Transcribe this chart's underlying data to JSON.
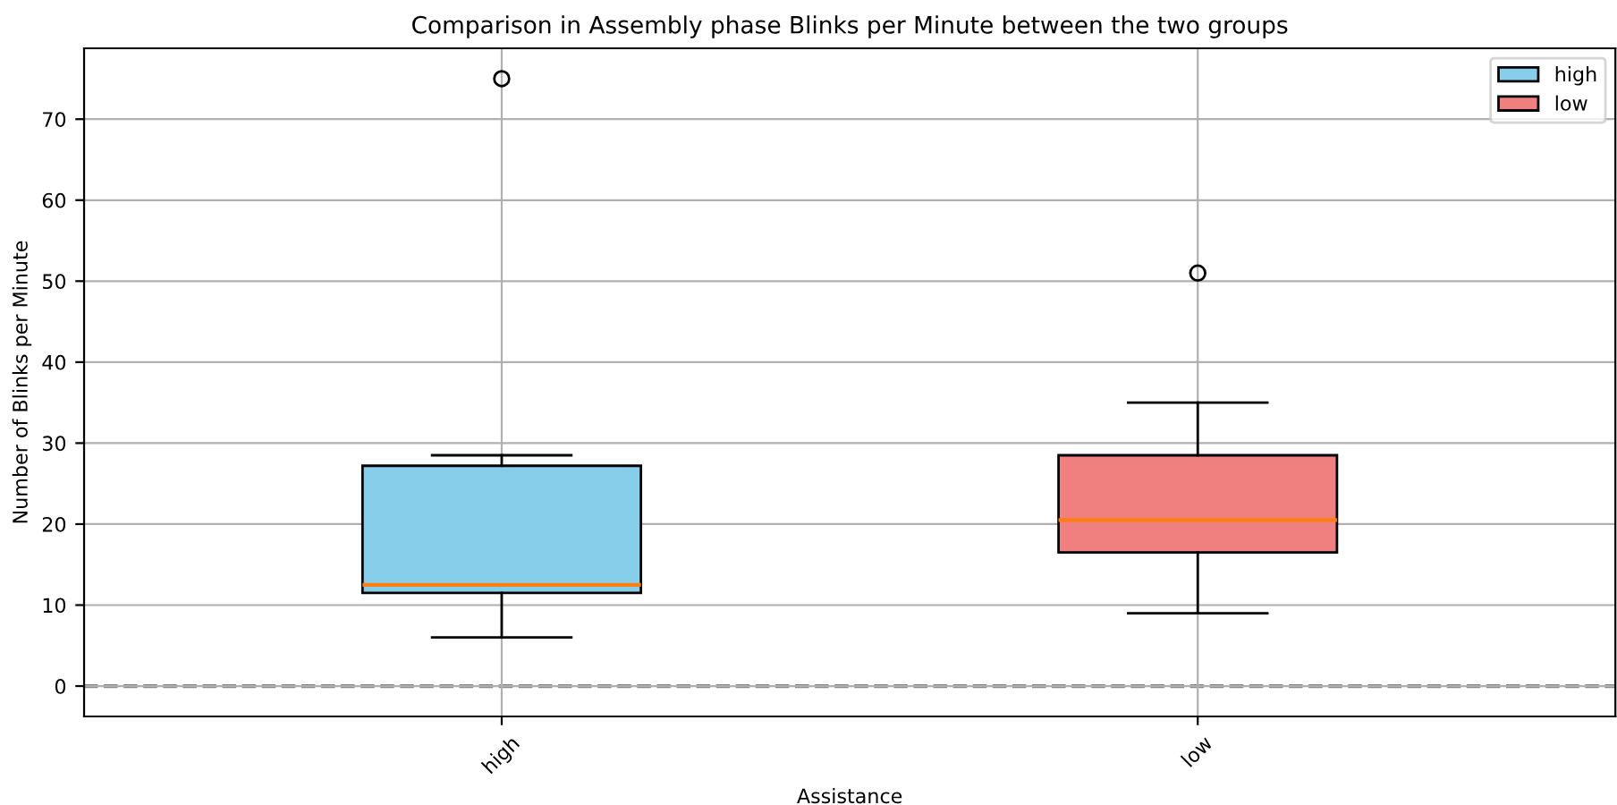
{
  "chart_data": {
    "type": "box",
    "title": "Comparison in Assembly phase Blinks per Minute between the two groups",
    "xlabel": "Assistance",
    "ylabel": "Number of Blinks per Minute",
    "categories": [
      "high",
      "low"
    ],
    "series": [
      {
        "name": "high",
        "color": "#87ceeb",
        "boxes": [
          {
            "low": 6,
            "q1": 11.5,
            "median": 12.5,
            "q3": 27.2,
            "high": 28.5,
            "outliers": [
              75
            ]
          },
          null
        ]
      },
      {
        "name": "low",
        "color": "#f08080",
        "boxes": [
          null,
          {
            "low": 9,
            "q1": 16.5,
            "median": 20.5,
            "q3": 28.5,
            "high": 35,
            "outliers": [
              51
            ]
          }
        ]
      }
    ],
    "ylim": [
      -3.75,
      78.75
    ],
    "yticks": [
      0,
      10,
      20,
      30,
      40,
      50,
      60,
      70
    ],
    "ref_lines": [
      {
        "axis": "y",
        "value": 0,
        "color": "#808080",
        "line_style": "dashed"
      }
    ],
    "grid": true,
    "legend": "top right"
  }
}
